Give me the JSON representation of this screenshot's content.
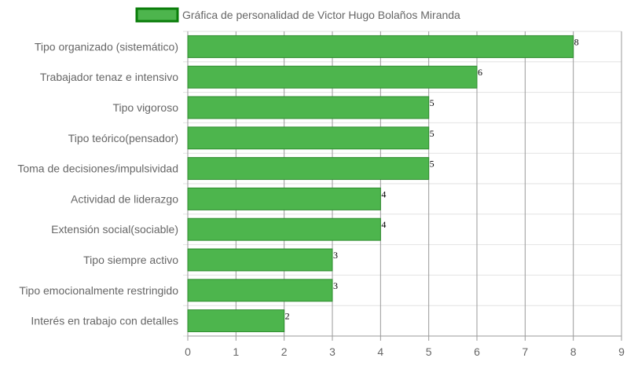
{
  "chart_data": {
    "type": "bar",
    "orientation": "horizontal",
    "title": "",
    "xlabel": "",
    "ylabel": "",
    "legend": {
      "placement": "top-center",
      "entries": [
        "Gráfica de personalidad de Victor Hugo Bolaños Miranda"
      ]
    },
    "categories": [
      "Tipo organizado (sistemático)",
      "Trabajador tenaz e intensivo",
      "Tipo vigoroso",
      "Tipo teórico(pensador)",
      "Toma de decisiones/impulsividad",
      "Actividad de liderazgo",
      "Extensión social(sociable)",
      "Tipo siempre activo",
      "Tipo emocionalmente restringido",
      "Interés en trabajo con detalles"
    ],
    "series": [
      {
        "name": "Gráfica de personalidad de Victor Hugo Bolaños Miranda",
        "values": [
          8,
          6,
          5,
          5,
          5,
          4,
          4,
          3,
          3,
          2
        ]
      }
    ],
    "value_labels": [
      "8",
      "6",
      "5",
      "5",
      "5",
      "4",
      "4",
      "3",
      "3",
      "2"
    ],
    "xlim": [
      0,
      9
    ],
    "x_ticks": [
      "0",
      "1",
      "2",
      "3",
      "4",
      "5",
      "6",
      "7",
      "8",
      "9"
    ],
    "grid": true,
    "colors": {
      "bar_fill": "#4db54d",
      "bar_stroke": "#2e8b2e",
      "legend_fill": "#4db54d",
      "legend_stroke": "#0a7d0a",
      "vertical_grid": "#9a9a9a",
      "horizontal_grid": "#e2e2e2",
      "axis": "#9a9a9a"
    }
  }
}
